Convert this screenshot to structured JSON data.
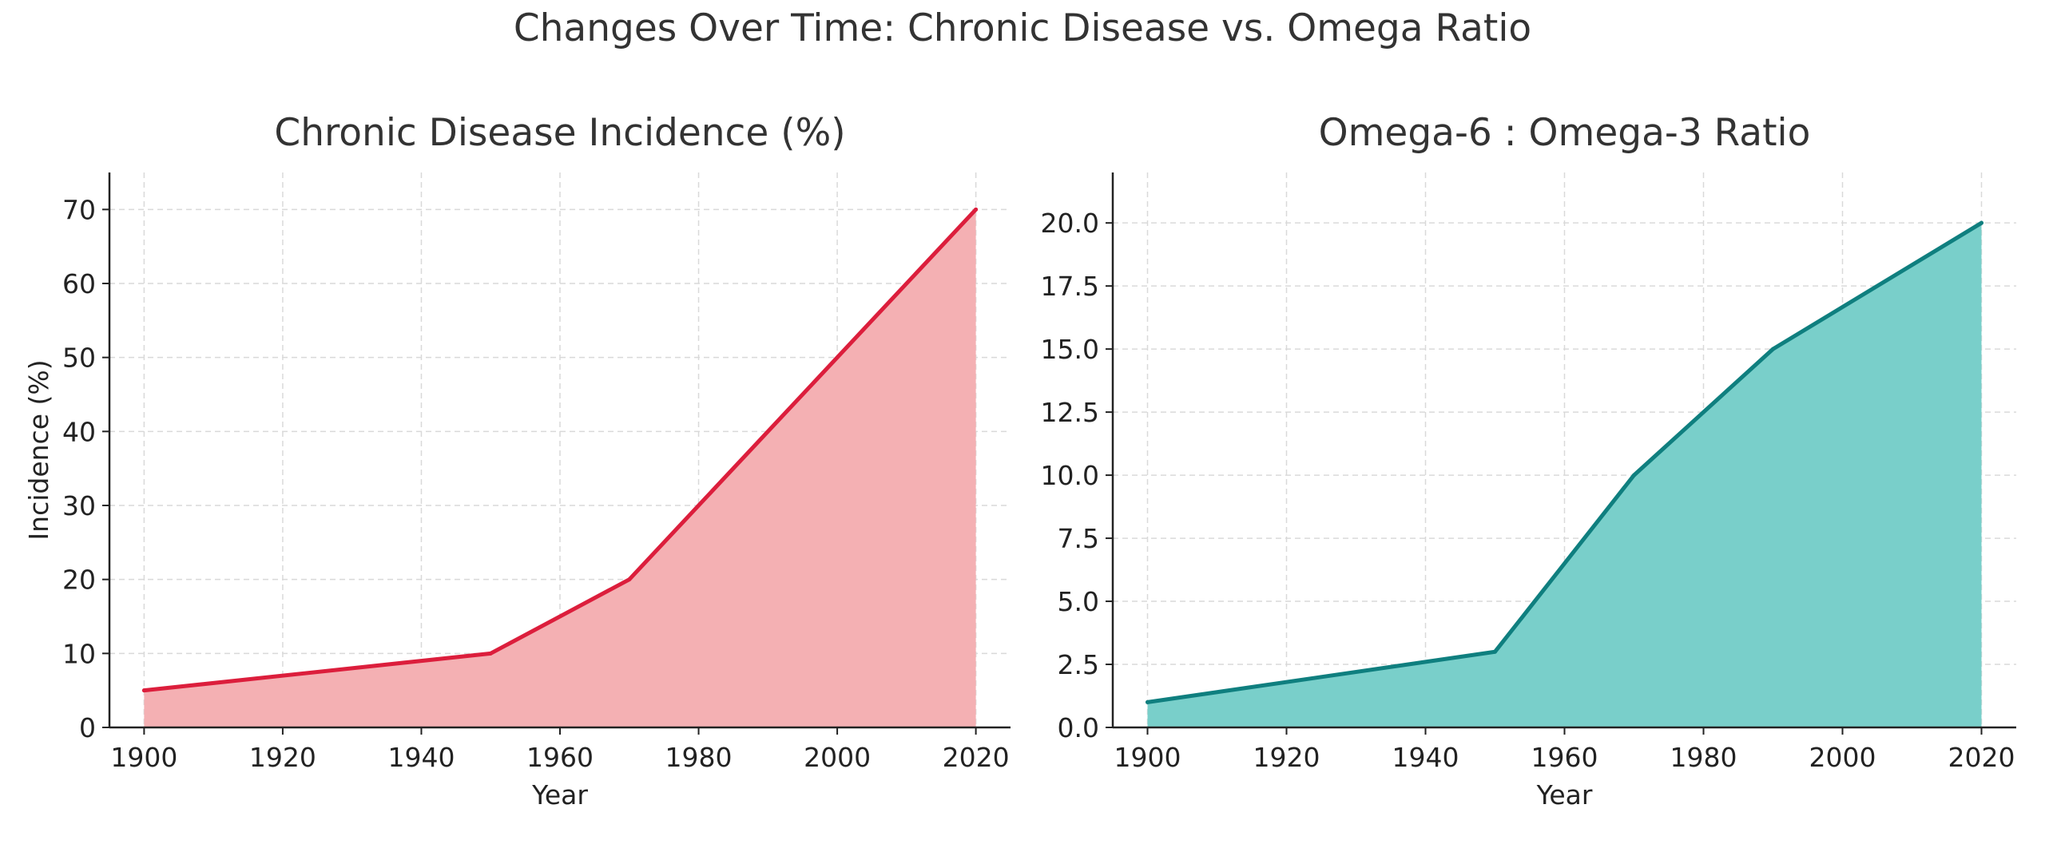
{
  "figure_title": "Changes Over Time: Chronic Disease vs. Omega Ratio",
  "chart_data": [
    {
      "type": "area",
      "title": "Chronic Disease Incidence (%)",
      "xlabel": "Year",
      "ylabel": "Incidence (%)",
      "x": [
        1900,
        1950,
        1970,
        2020
      ],
      "y": [
        5,
        10,
        20,
        70
      ],
      "xlim": [
        1895,
        2025
      ],
      "ylim": [
        0,
        75
      ],
      "xticks": [
        1900,
        1920,
        1940,
        1960,
        1980,
        2000,
        2020
      ],
      "yticks": [
        0,
        10,
        20,
        30,
        40,
        50,
        60,
        70
      ],
      "ytick_labels": [
        "0",
        "10",
        "20",
        "30",
        "40",
        "50",
        "60",
        "70"
      ],
      "line_color": "#dc1e3c",
      "fill_color": "#f4b0b3",
      "grid": true
    },
    {
      "type": "area",
      "title": "Omega-6 : Omega-3 Ratio",
      "xlabel": "Year",
      "ylabel": "",
      "x": [
        1900,
        1950,
        1970,
        1990,
        2020
      ],
      "y": [
        1,
        3,
        10,
        15,
        20
      ],
      "xlim": [
        1895,
        2025
      ],
      "ylim": [
        0,
        22
      ],
      "xticks": [
        1900,
        1920,
        1940,
        1960,
        1980,
        2000,
        2020
      ],
      "yticks": [
        0,
        2.5,
        5,
        7.5,
        10,
        12.5,
        15,
        17.5,
        20
      ],
      "ytick_labels": [
        "0.0",
        "2.5",
        "5.0",
        "7.5",
        "10.0",
        "12.5",
        "15.0",
        "17.5",
        "20.0"
      ],
      "line_color": "#0f7f7f",
      "fill_color": "#79cfca",
      "grid": true
    }
  ]
}
